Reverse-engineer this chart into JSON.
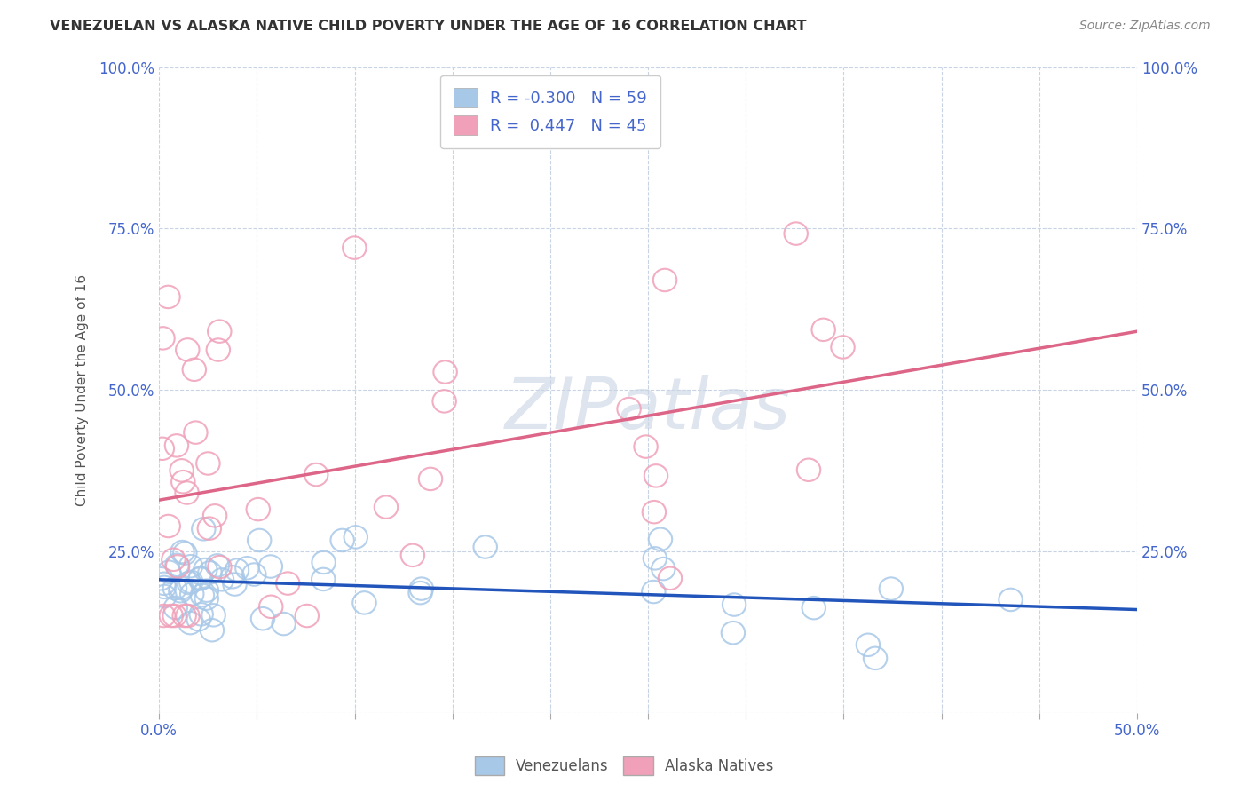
{
  "title": "VENEZUELAN VS ALASKA NATIVE CHILD POVERTY UNDER THE AGE OF 16 CORRELATION CHART",
  "source": "Source: ZipAtlas.com",
  "ylabel": "Child Poverty Under the Age of 16",
  "xlim": [
    0.0,
    0.5
  ],
  "ylim": [
    0.0,
    1.0
  ],
  "venezuelan_R": -0.3,
  "venezuelan_N": 59,
  "alaska_R": 0.447,
  "alaska_N": 45,
  "venezuelan_color": "#a8c8e8",
  "alaska_color": "#f0a0b8",
  "venezuelan_line_color": "#2255bb",
  "alaska_line_color": "#dd6688",
  "alaska_dashed_color": "#aabbcc",
  "watermark_color": "#c8d4e4",
  "background_color": "#ffffff",
  "grid_color": "#c8d4e4",
  "tick_color": "#4466cc",
  "title_color": "#333333",
  "ylabel_color": "#555555",
  "source_color": "#888888"
}
